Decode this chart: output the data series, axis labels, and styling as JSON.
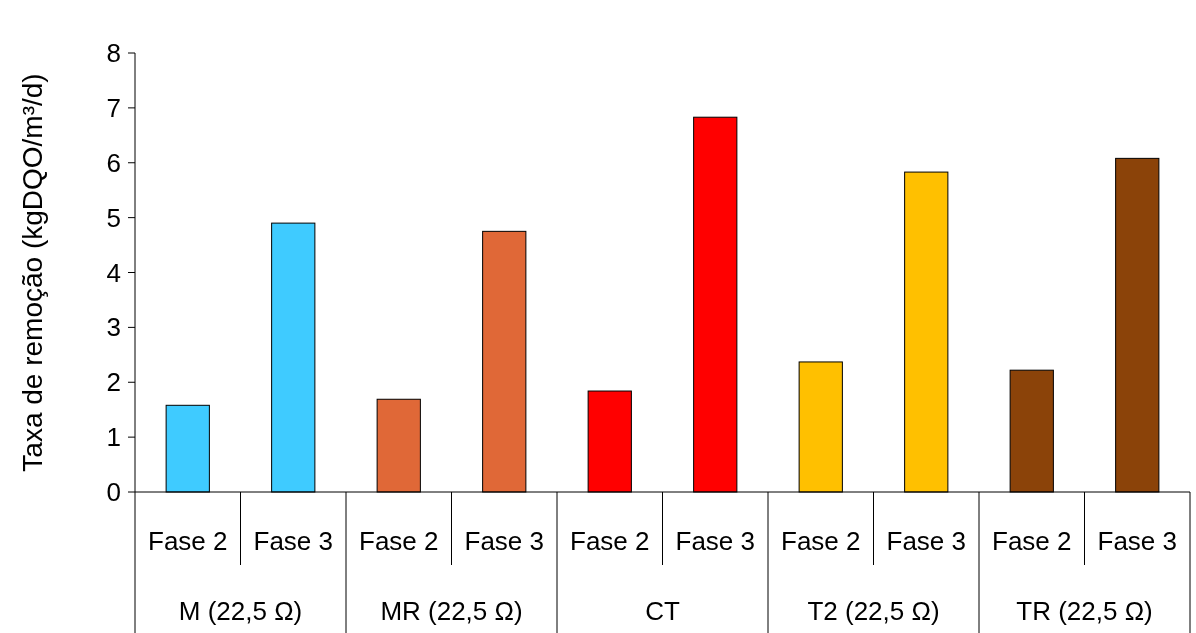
{
  "chart_data": {
    "type": "bar",
    "ylabel": "Taxa de remoção (kgDQO/m³/d)",
    "categories": [
      "Fase 2",
      "Fase 3",
      "Fase 2",
      "Fase 3",
      "Fase 2",
      "Fase 3",
      "Fase 2",
      "Fase 3",
      "Fase 2",
      "Fase 3"
    ],
    "values": [
      1.58,
      4.9,
      1.69,
      4.75,
      1.84,
      6.83,
      2.37,
      5.83,
      2.22,
      6.08
    ],
    "colors": [
      "#3fcbff",
      "#3fcbff",
      "#e06837",
      "#e06837",
      "#ff0000",
      "#ff0000",
      "#ffc000",
      "#ffc000",
      "#8b4309",
      "#8b4309"
    ],
    "annotations": [
      "M (22,5 Ω)",
      "MR (22,5 Ω)",
      "CT",
      "T2 (22,5 Ω)",
      "TR (22,5 Ω)"
    ],
    "ylim": [
      0,
      8
    ],
    "yticks": [
      0,
      1,
      2,
      3,
      4,
      5,
      6,
      7,
      8
    ],
    "grid": false
  }
}
